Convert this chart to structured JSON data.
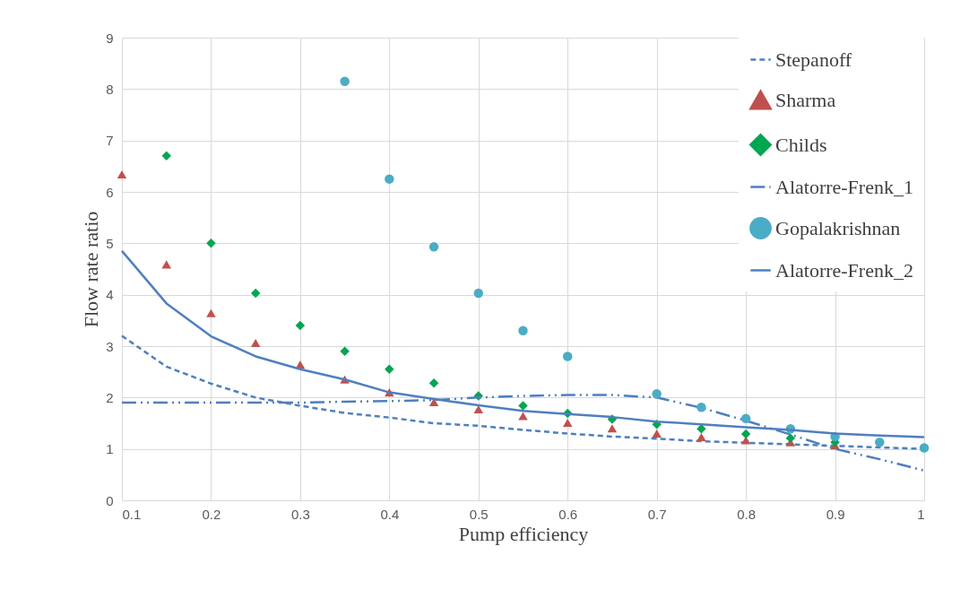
{
  "chart_data": {
    "type": "scatter",
    "xlabel": "Pump efficiency",
    "ylabel": "Flow rate ratio",
    "x": [
      0.1,
      0.15,
      0.2,
      0.25,
      0.3,
      0.35,
      0.4,
      0.45,
      0.5,
      0.55,
      0.6,
      0.65,
      0.7,
      0.75,
      0.8,
      0.85,
      0.9,
      0.95,
      1.0
    ],
    "xlim": [
      0.1,
      1.0
    ],
    "xticks": [
      0.1,
      0.2,
      0.3,
      0.4,
      0.5,
      0.6,
      0.7,
      0.8,
      0.9,
      1
    ],
    "ylim": [
      0,
      9
    ],
    "yticks": [
      0,
      1,
      2,
      3,
      4,
      5,
      6,
      7,
      8,
      9
    ],
    "grid": true,
    "legend": "top right",
    "series": [
      {
        "name": "Stepanoff",
        "type": "line",
        "line_style": "dashed",
        "color": "#4f7fbf",
        "values": [
          3.2,
          2.6,
          2.27,
          2.0,
          1.84,
          1.7,
          1.61,
          1.5,
          1.45,
          1.37,
          1.3,
          1.24,
          1.2,
          1.15,
          1.12,
          1.09,
          1.06,
          1.03,
          1.0
        ]
      },
      {
        "name": "Sharma",
        "marker": "triangle",
        "color": "#c0504d",
        "values": [
          6.34,
          4.59,
          3.64,
          3.06,
          2.64,
          2.35,
          2.1,
          1.91,
          1.77,
          1.64,
          1.51,
          1.4,
          1.3,
          1.23,
          1.17,
          1.13,
          1.07,
          null,
          null
        ]
      },
      {
        "name": "Childs",
        "marker": "diamond",
        "color": "#00a650",
        "values": [
          null,
          6.7,
          5.0,
          4.03,
          3.4,
          2.9,
          2.55,
          2.28,
          2.03,
          1.84,
          1.69,
          1.58,
          1.48,
          1.39,
          1.29,
          1.21,
          1.13,
          null,
          null
        ]
      },
      {
        "name": "Alatorre-Frenk_1",
        "type": "line",
        "line_style": "dashdotdot",
        "color": "#4f7fbf",
        "values": [
          1.9,
          1.9,
          1.9,
          1.9,
          1.9,
          1.92,
          1.93,
          1.95,
          2.0,
          2.03,
          2.05,
          2.05,
          2.0,
          1.8,
          1.55,
          1.28,
          1.0,
          0.8,
          0.58
        ]
      },
      {
        "name": "Gopalakrishnan",
        "marker": "circle",
        "color": "#4bacc6",
        "values": [
          null,
          null,
          null,
          null,
          null,
          8.15,
          6.25,
          4.93,
          4.03,
          3.3,
          2.8,
          null,
          2.07,
          1.81,
          1.59,
          1.39,
          1.24,
          1.13,
          1.02
        ]
      },
      {
        "name": "Alatorre-Frenk_2",
        "type": "line",
        "line_style": "solid",
        "color": "#4f7fbf",
        "values": [
          4.85,
          3.83,
          3.19,
          2.8,
          2.55,
          2.35,
          2.1,
          1.97,
          1.85,
          1.74,
          1.68,
          1.62,
          1.53,
          1.48,
          1.42,
          1.37,
          1.3,
          1.26,
          1.23
        ]
      }
    ]
  }
}
